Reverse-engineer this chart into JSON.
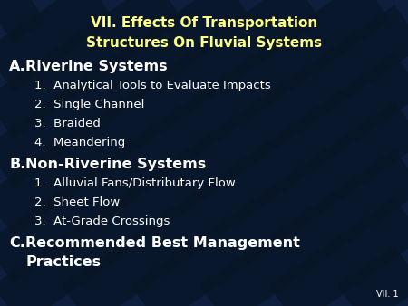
{
  "title_line1": "VII. Effects Of Transportation",
  "title_line2": "Structures On Fluvial Systems",
  "title_color": "#FFFF88",
  "bg_color": "#0d1f3c",
  "stripe_color": "#0a1830",
  "section_color": "#FFFFFF",
  "item_color": "#FFFFFF",
  "slide_id": "VII. 1",
  "section_a_label": "A.",
  "section_a_text": "Riverine Systems",
  "section_b_label": "B.",
  "section_b_text": "Non-Riverine Systems",
  "section_c_label": "C.",
  "section_c_text_line1": "Recommended Best Management",
  "section_c_text_line2": "Practices",
  "items_a": [
    "1.  Analytical Tools to Evaluate Impacts",
    "2.  Single Channel",
    "3.  Braided",
    "4.  Meandering"
  ],
  "items_b": [
    "1.  Alluvial Fans/Distributary Flow",
    "2.  Sheet Flow",
    "3.  At-Grade Crossings"
  ],
  "title_fontsize": 11.0,
  "section_fontsize": 11.5,
  "item_fontsize": 9.5
}
